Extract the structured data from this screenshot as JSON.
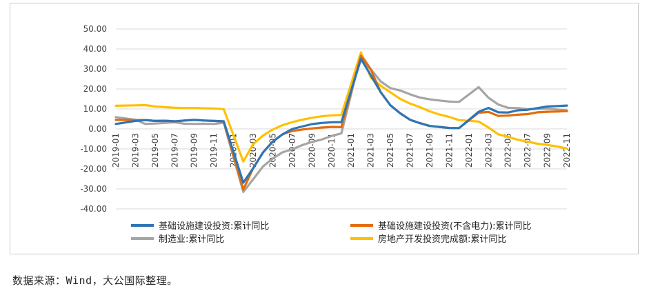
{
  "source_note": "数据来源：Wind，大公国际整理。",
  "chart_data": {
    "type": "line",
    "title": "",
    "xlabel": "",
    "ylabel": "",
    "ylim": [
      -40,
      50
    ],
    "yticks": [
      "50.00",
      "40.00",
      "30.00",
      "20.00",
      "10.00",
      "0.00",
      "-10.00",
      "-20.00",
      "-30.00",
      "-40.00"
    ],
    "grid": true,
    "legend_position": "bottom",
    "x": [
      "2019-01",
      "2019-02",
      "2019-03",
      "2019-04",
      "2019-05",
      "2019-06",
      "2019-07",
      "2019-08",
      "2019-09",
      "2019-10",
      "2019-11",
      "2019-12",
      "2020-01",
      "2020-02",
      "2020-03",
      "2020-04",
      "2020-05",
      "2020-06",
      "2020-07",
      "2020-08",
      "2020-09",
      "2020-10",
      "2020-11",
      "2020-12",
      "2021-01",
      "2021-02",
      "2021-03",
      "2021-04",
      "2021-05",
      "2021-06",
      "2021-07",
      "2021-08",
      "2021-09",
      "2021-10",
      "2021-11",
      "2021-12",
      "2022-01",
      "2022-02",
      "2022-03",
      "2022-04",
      "2022-05",
      "2022-06",
      "2022-07",
      "2022-08",
      "2022-09",
      "2022-10",
      "2022-11"
    ],
    "xticks": [
      "2019-01",
      "2019-03",
      "2019-05",
      "2019-07",
      "2019-09",
      "2019-11",
      "2020-01",
      "2020-03",
      "2020-05",
      "2020-07",
      "2020-09",
      "2020-11",
      "2021-01",
      "2021-03",
      "2021-05",
      "2021-07",
      "2021-09",
      "2021-11",
      "2022-01",
      "2022-03",
      "2022-05",
      "2022-07",
      "2022-09",
      "2022-11"
    ],
    "series": [
      {
        "name": "基础设施建设投资:累计同比",
        "color": "#2e75b6",
        "values": [
          2.5,
          null,
          4.0,
          4.4,
          4.0,
          4.1,
          3.8,
          4.2,
          4.5,
          4.2,
          4.0,
          3.8,
          null,
          -26.9,
          -19.7,
          -11.8,
          -6.3,
          -2.7,
          0.0,
          1.2,
          2.4,
          3.0,
          3.3,
          3.4,
          null,
          35.0,
          26.8,
          18.4,
          11.8,
          7.8,
          4.6,
          2.9,
          1.5,
          1.0,
          0.5,
          0.4,
          null,
          8.6,
          10.5,
          8.3,
          8.2,
          9.3,
          9.6,
          10.4,
          11.2,
          11.4,
          11.7
        ]
      },
      {
        "name": "基础设施建设投资(不含电力):累计同比",
        "color": "#e46c0a",
        "values": [
          4.5,
          null,
          4.4,
          4.4,
          4.0,
          4.1,
          3.8,
          4.2,
          4.5,
          4.2,
          4.0,
          3.8,
          null,
          -30.3,
          -19.7,
          -11.8,
          -6.3,
          -2.7,
          -1.0,
          -0.3,
          0.2,
          0.7,
          1.0,
          0.9,
          null,
          36.6,
          29.7,
          18.4,
          11.8,
          7.8,
          4.6,
          2.9,
          1.5,
          1.0,
          0.5,
          0.4,
          null,
          8.1,
          8.5,
          6.5,
          6.7,
          7.1,
          7.4,
          8.3,
          8.6,
          8.7,
          8.9
        ]
      },
      {
        "name": "制造业:累计同比",
        "color": "#a5a5a5",
        "values": [
          5.9,
          null,
          4.6,
          2.5,
          2.7,
          3.0,
          3.3,
          2.6,
          2.5,
          2.6,
          2.5,
          3.1,
          null,
          -31.5,
          -25.2,
          -18.8,
          -14.8,
          -11.7,
          -10.2,
          -8.1,
          -6.5,
          -5.3,
          -3.5,
          -2.2,
          null,
          37.3,
          29.8,
          23.8,
          20.4,
          19.2,
          17.3,
          15.7,
          14.8,
          14.2,
          13.7,
          13.5,
          null,
          20.9,
          15.6,
          12.2,
          10.6,
          10.4,
          9.9,
          10.0,
          10.1,
          9.7,
          9.3
        ]
      },
      {
        "name": "房地产开发投资完成额:累计同比",
        "color": "#ffc000",
        "values": [
          11.6,
          null,
          11.8,
          11.9,
          11.2,
          10.9,
          10.6,
          10.5,
          10.5,
          10.3,
          10.2,
          9.9,
          null,
          -16.3,
          -7.7,
          -3.3,
          -0.3,
          1.9,
          3.4,
          4.6,
          5.6,
          6.3,
          6.8,
          7.0,
          null,
          38.3,
          25.6,
          21.6,
          18.3,
          15.0,
          12.7,
          10.9,
          8.8,
          7.2,
          6.0,
          4.4,
          null,
          3.7,
          0.7,
          -2.7,
          -4.0,
          -5.4,
          -6.4,
          -7.4,
          -8.0,
          -8.8,
          -9.8
        ]
      }
    ]
  }
}
